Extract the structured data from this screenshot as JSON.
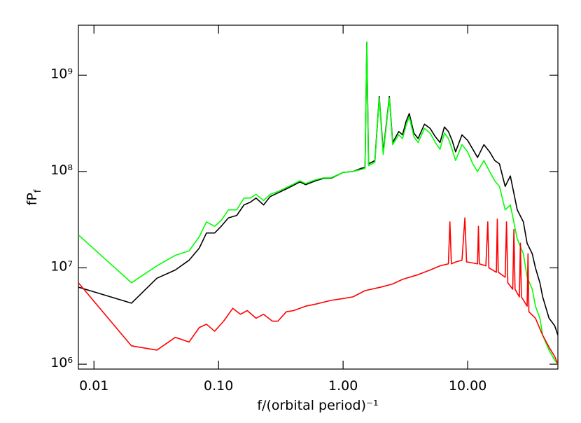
{
  "chart_data": {
    "type": "line",
    "x_label": "f/(orbital period)⁻¹",
    "y_label": "fP",
    "y_label_sub": "f",
    "x_log": true,
    "y_log": true,
    "grid": false,
    "xlim": [
      0.0075,
      53
    ],
    "ylim": [
      890000,
      3300000000
    ],
    "xticks": [
      {
        "value": 0.01,
        "label": "0.01"
      },
      {
        "value": 0.1,
        "label": "0.10"
      },
      {
        "value": 1,
        "label": "1.00"
      },
      {
        "value": 10,
        "label": "10.00"
      }
    ],
    "yticks": [
      {
        "value": 1000000,
        "label": "10⁶"
      },
      {
        "value": 10000000,
        "label": "10⁷"
      },
      {
        "value": 100000000,
        "label": "10⁸"
      },
      {
        "value": 1000000000,
        "label": "10⁹"
      }
    ],
    "series": [
      {
        "color": "#000000",
        "x": [
          0.0075,
          0.02,
          0.032,
          0.045,
          0.058,
          0.07,
          0.08,
          0.093,
          0.105,
          0.12,
          0.14,
          0.16,
          0.18,
          0.2,
          0.23,
          0.26,
          0.3,
          0.35,
          0.4,
          0.45,
          0.5,
          0.6,
          0.7,
          0.8,
          1.0,
          1.2,
          1.4,
          1.5,
          1.55,
          1.6,
          1.8,
          1.95,
          2.1,
          2.35,
          2.5,
          2.8,
          3.0,
          3.2,
          3.4,
          3.7,
          4.0,
          4.5,
          5.0,
          5.5,
          6.0,
          6.5,
          7.0,
          7.5,
          8.0,
          9.0,
          10.0,
          11.0,
          12.0,
          13.5,
          15.0,
          16.5,
          18.0,
          20.0,
          22.0,
          25.0,
          28.0,
          30.0,
          33.0,
          35.0,
          38.0,
          40.0,
          45.0,
          50.0,
          53.0
        ],
        "values": [
          6300000,
          4300000,
          7800000,
          9500000,
          12000000,
          16000000,
          23000000,
          23000000,
          27000000,
          33000000,
          35000000,
          45000000,
          48000000,
          53000000,
          45000000,
          55000000,
          60000000,
          66000000,
          72000000,
          78000000,
          73000000,
          80000000,
          85000000,
          85000000,
          98000000,
          100000000,
          108000000,
          110000000,
          2200000000,
          120000000,
          130000000,
          600000000,
          160000000,
          600000000,
          200000000,
          260000000,
          240000000,
          330000000,
          400000000,
          250000000,
          220000000,
          310000000,
          280000000,
          230000000,
          200000000,
          290000000,
          260000000,
          210000000,
          160000000,
          240000000,
          210000000,
          170000000,
          140000000,
          190000000,
          160000000,
          130000000,
          120000000,
          70000000,
          90000000,
          40000000,
          30000000,
          18000000,
          14000000,
          10000000,
          7000000,
          5000000,
          3000000,
          2500000,
          2000000
        ]
      },
      {
        "color": "#00ff00",
        "x": [
          0.0075,
          0.02,
          0.032,
          0.045,
          0.058,
          0.07,
          0.08,
          0.093,
          0.105,
          0.12,
          0.14,
          0.16,
          0.18,
          0.2,
          0.23,
          0.26,
          0.3,
          0.35,
          0.4,
          0.45,
          0.5,
          0.6,
          0.7,
          0.8,
          1.0,
          1.2,
          1.4,
          1.5,
          1.55,
          1.6,
          1.8,
          1.95,
          2.1,
          2.35,
          2.5,
          2.8,
          3.0,
          3.2,
          3.4,
          3.7,
          4.0,
          4.5,
          5.0,
          5.5,
          6.0,
          6.5,
          7.0,
          7.5,
          8.0,
          9.0,
          10.0,
          11.0,
          12.0,
          13.5,
          15.0,
          16.5,
          18.0,
          20.0,
          22.0,
          25.0,
          28.0,
          30.0,
          33.0,
          35.0,
          38.0,
          40.0,
          45.0,
          50.0,
          53.0
        ],
        "values": [
          22000000,
          7000000,
          10500000,
          13500000,
          15000000,
          21000000,
          30000000,
          27000000,
          31000000,
          40000000,
          40000000,
          53000000,
          53000000,
          58000000,
          50000000,
          58000000,
          62000000,
          68000000,
          74000000,
          80000000,
          75000000,
          82000000,
          86000000,
          86000000,
          98000000,
          100000000,
          105000000,
          108000000,
          2200000000,
          115000000,
          125000000,
          580000000,
          150000000,
          580000000,
          190000000,
          240000000,
          220000000,
          300000000,
          370000000,
          230000000,
          200000000,
          280000000,
          250000000,
          200000000,
          170000000,
          250000000,
          220000000,
          170000000,
          130000000,
          190000000,
          160000000,
          120000000,
          100000000,
          130000000,
          100000000,
          80000000,
          70000000,
          40000000,
          45000000,
          20000000,
          14000000,
          8000000,
          6000000,
          4000000,
          3000000,
          2000000,
          1400000,
          1100000,
          1000000
        ]
      },
      {
        "color": "#ff0000",
        "x": [
          0.0075,
          0.02,
          0.032,
          0.045,
          0.058,
          0.07,
          0.08,
          0.093,
          0.11,
          0.13,
          0.15,
          0.17,
          0.2,
          0.23,
          0.27,
          0.3,
          0.35,
          0.4,
          0.5,
          0.6,
          0.8,
          1.0,
          1.2,
          1.5,
          2.0,
          2.5,
          3.0,
          4.0,
          5.0,
          6.0,
          7.0,
          7.2,
          7.4,
          8.0,
          9.0,
          9.5,
          9.8,
          10.0,
          12.0,
          12.2,
          12.4,
          14.0,
          14.5,
          14.8,
          17.0,
          17.3,
          17.6,
          20.0,
          20.5,
          21.0,
          23.0,
          23.5,
          24.0,
          26.0,
          26.5,
          27.0,
          30.0,
          30.5,
          31.0,
          35.0,
          40.0,
          45.0,
          50.0,
          53.0
        ],
        "values": [
          7000000,
          1550000,
          1400000,
          1900000,
          1700000,
          2400000,
          2600000,
          2200000,
          2800000,
          3800000,
          3300000,
          3600000,
          3000000,
          3300000,
          2800000,
          2800000,
          3500000,
          3600000,
          4000000,
          4200000,
          4600000,
          4800000,
          5000000,
          5800000,
          6300000,
          6800000,
          7600000,
          8500000,
          9500000,
          10500000,
          11000000,
          30000000,
          11000000,
          11500000,
          12000000,
          33000000,
          11500000,
          11500000,
          11000000,
          27000000,
          11000000,
          10500000,
          30000000,
          10000000,
          9000000,
          32000000,
          9000000,
          8000000,
          30000000,
          7000000,
          6000000,
          25000000,
          6000000,
          5000000,
          18000000,
          5000000,
          4000000,
          14000000,
          3500000,
          3000000,
          2000000,
          1500000,
          1200000,
          1000000
        ]
      }
    ]
  }
}
